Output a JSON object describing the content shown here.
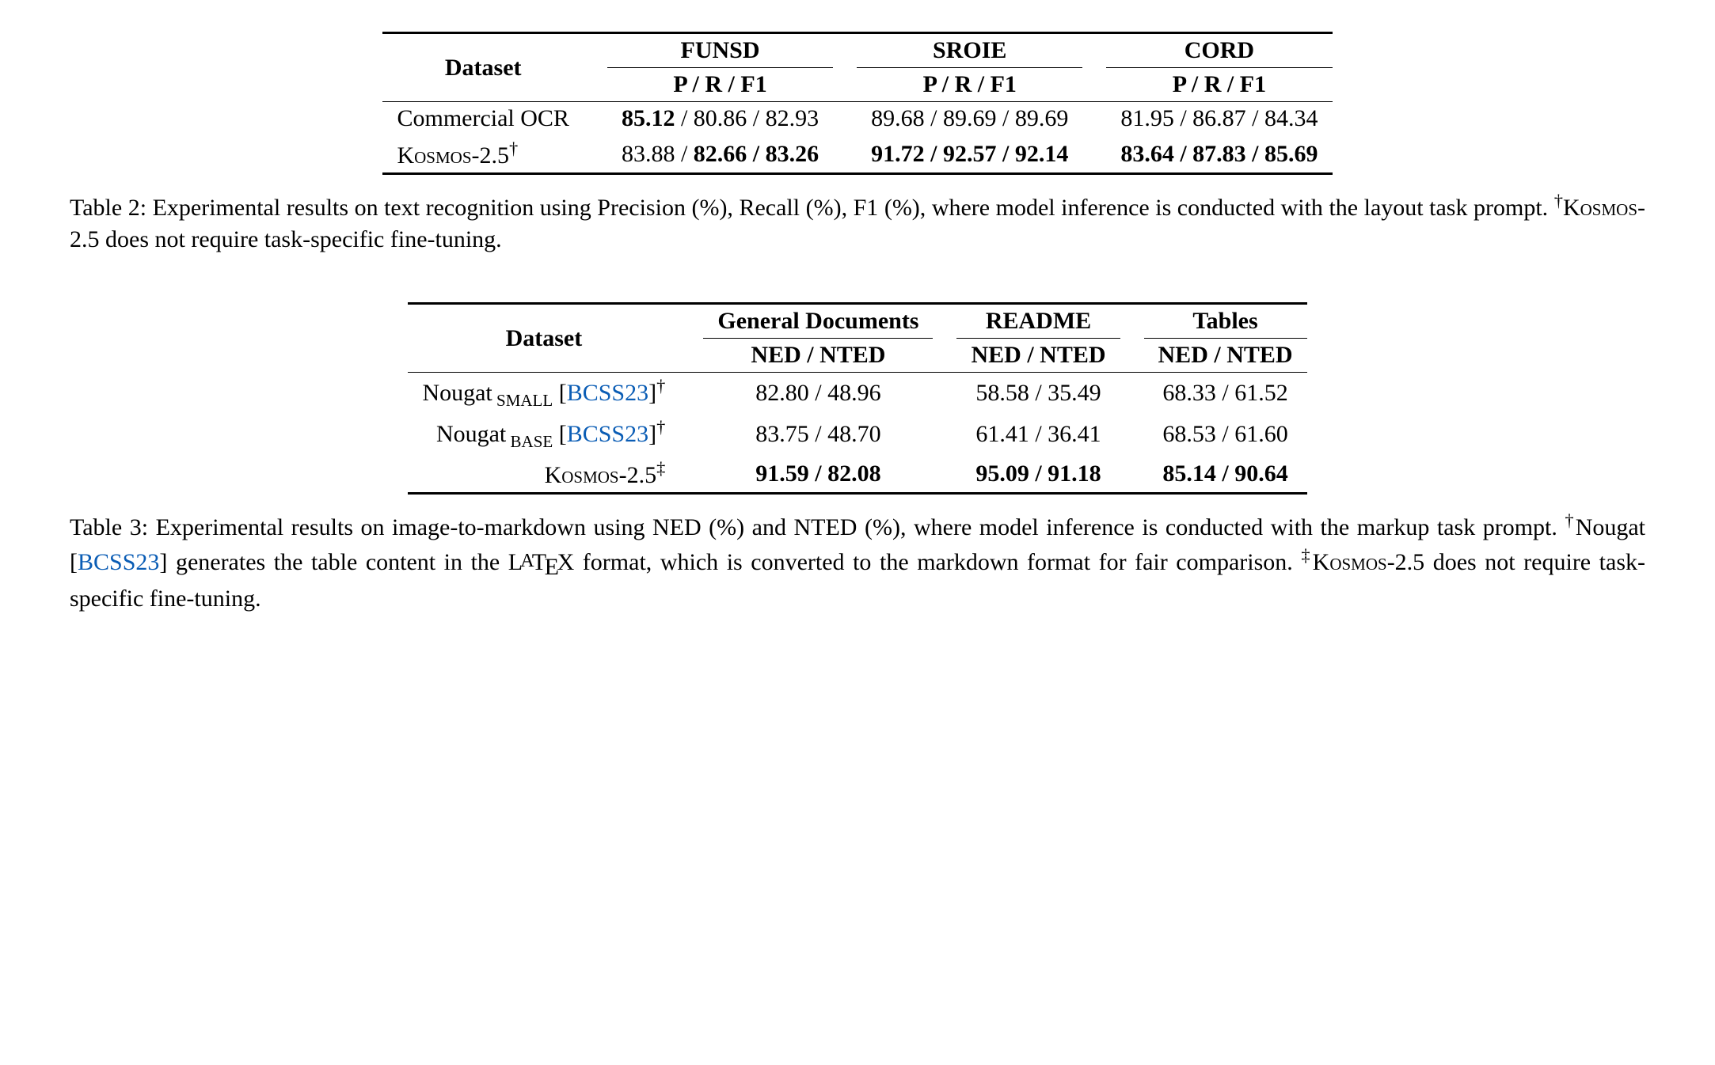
{
  "table2": {
    "dataset_label": "Dataset",
    "groups": [
      {
        "name": "FUNSD",
        "metric": "P / R / F1"
      },
      {
        "name": "SROIE",
        "metric": "P / R / F1"
      },
      {
        "name": "CORD",
        "metric": "P / R / F1"
      }
    ],
    "rows": [
      {
        "label_plain": "Commercial OCR",
        "label_sc": "",
        "label_sup": "",
        "cells": [
          {
            "parts": [
              {
                "t": "85.12",
                "b": true
              },
              {
                "t": " / ",
                "b": false
              },
              {
                "t": "80.86",
                "b": false
              },
              {
                "t": " / ",
                "b": false
              },
              {
                "t": "82.93",
                "b": false
              }
            ]
          },
          {
            "parts": [
              {
                "t": "89.68",
                "b": false
              },
              {
                "t": " / ",
                "b": false
              },
              {
                "t": "89.69",
                "b": false
              },
              {
                "t": " / ",
                "b": false
              },
              {
                "t": "89.69",
                "b": false
              }
            ]
          },
          {
            "parts": [
              {
                "t": "81.95",
                "b": false
              },
              {
                "t": " / ",
                "b": false
              },
              {
                "t": "86.87",
                "b": false
              },
              {
                "t": " / ",
                "b": false
              },
              {
                "t": "84.34",
                "b": false
              }
            ]
          }
        ]
      },
      {
        "label_plain": "",
        "label_sc": "Kosmos-2.5",
        "label_sup": "†",
        "cells": [
          {
            "parts": [
              {
                "t": "83.88",
                "b": false
              },
              {
                "t": " / ",
                "b": false
              },
              {
                "t": "82.66",
                "b": true
              },
              {
                "t": " / ",
                "b": true
              },
              {
                "t": "83.26",
                "b": true
              }
            ]
          },
          {
            "parts": [
              {
                "t": "91.72",
                "b": true
              },
              {
                "t": " / ",
                "b": true
              },
              {
                "t": "92.57",
                "b": true
              },
              {
                "t": " / ",
                "b": true
              },
              {
                "t": "92.14",
                "b": true
              }
            ]
          },
          {
            "parts": [
              {
                "t": "83.64",
                "b": true
              },
              {
                "t": " / ",
                "b": true
              },
              {
                "t": "87.83",
                "b": true
              },
              {
                "t": " / ",
                "b": true
              },
              {
                "t": "85.69",
                "b": true
              }
            ]
          }
        ]
      }
    ],
    "caption_prefix": "Table 2: Experimental results on text recognition using Precision (%), Recall (%), F1 (%), where model inference is conducted with the layout task prompt. ",
    "caption_dagger": "†",
    "caption_sc": "Kosmos",
    "caption_suffix": "-2.5 does not require task-specific fine-tuning."
  },
  "table3": {
    "dataset_label": "Dataset",
    "groups": [
      {
        "name": "General Documents",
        "metric": "NED / NTED"
      },
      {
        "name": "README",
        "metric": "NED / NTED"
      },
      {
        "name": "Tables",
        "metric": "NED / NTED"
      }
    ],
    "rows": [
      {
        "label_pre": "Nougat",
        "label_sub": "SMALL",
        "label_cite": "BCSS23",
        "label_sup": "†",
        "label_sc": "",
        "cells": [
          {
            "t": "82.80 / 48.96",
            "b": false
          },
          {
            "t": "58.58 / 35.49",
            "b": false
          },
          {
            "t": "68.33 / 61.52",
            "b": false
          }
        ]
      },
      {
        "label_pre": "Nougat",
        "label_sub": "BASE",
        "label_cite": "BCSS23",
        "label_sup": "†",
        "label_sc": "",
        "cells": [
          {
            "t": "83.75 / 48.70",
            "b": false
          },
          {
            "t": "61.41 / 36.41",
            "b": false
          },
          {
            "t": "68.53 / 61.60",
            "b": false
          }
        ]
      },
      {
        "label_pre": "",
        "label_sub": "",
        "label_cite": "",
        "label_sup": "‡",
        "label_sc": "Kosmos-2.5",
        "cells": [
          {
            "t": "91.59 / 82.08",
            "b": true
          },
          {
            "t": "95.09 / 91.18",
            "b": true
          },
          {
            "t": "85.14 / 90.64",
            "b": true
          }
        ]
      }
    ],
    "caption_a": "Table 3: Experimental results on image-to-markdown using NED (%) and NTED (%), where model inference is conducted with the markup task prompt. ",
    "caption_dag1": "†",
    "caption_b": "Nougat [",
    "caption_cite": "BCSS23",
    "caption_c": "] generates the table content in the ",
    "caption_latex": "LATEX",
    "caption_d": " format, which is converted to the markdown format for fair comparison. ",
    "caption_dag2": "‡",
    "caption_sc": "Kosmos",
    "caption_e": "-2.5 does not require task-specific fine-tuning."
  },
  "colors": {
    "cite": "#0b5db5",
    "text": "#000000",
    "bg": "#ffffff"
  }
}
